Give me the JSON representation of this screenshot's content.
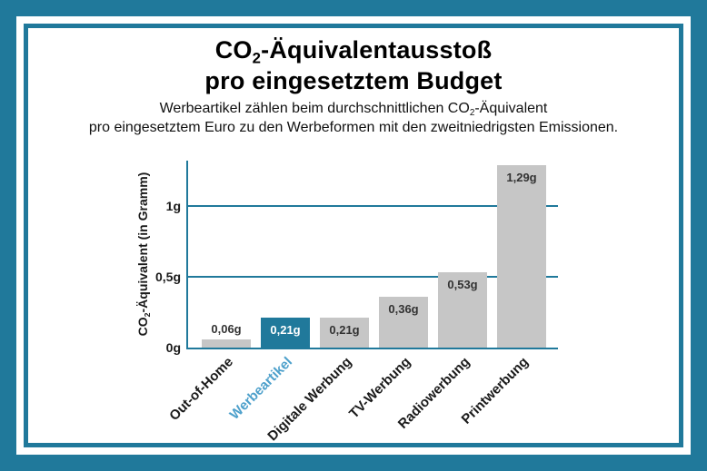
{
  "frame": {
    "color": "#20799B"
  },
  "header": {
    "title_line1": {
      "pre": "CO",
      "sub": "2",
      "post": "-Äquivalentausstoß"
    },
    "title_line2": "pro eingesetztem Budget",
    "subtitle_line1": {
      "pre": "Werbeartikel zählen beim durchschnittlichen CO",
      "sub": "2",
      "post": "-Äquivalent"
    },
    "subtitle_line2": "pro eingesetztem Euro zu den Werbeformen mit den zweitniedrigsten Emissionen."
  },
  "chart_data": {
    "type": "bar",
    "title": "CO2-Äquivalentausstoß pro eingesetztem Budget",
    "categories": [
      "Out-of-Home",
      "Werbeartikel",
      "Digitale Werbung",
      "TV-Werbung",
      "Radiowerbung",
      "Printwerbung"
    ],
    "values": [
      0.06,
      0.21,
      0.21,
      0.36,
      0.53,
      1.29
    ],
    "value_labels": [
      "0,06g",
      "0,21g",
      "0,21g",
      "0,36g",
      "0,53g",
      "1,29g"
    ],
    "highlight_index": 1,
    "ylabel": {
      "pre": "CO",
      "sub": "2",
      "post": "-Äquivalent (in Gramm)"
    },
    "yticks": [
      {
        "label": "0g",
        "value": 0
      },
      {
        "label": "0,5g",
        "value": 0.5
      },
      {
        "label": "1g",
        "value": 1
      }
    ],
    "ylim": [
      0,
      1.32
    ],
    "grid": true,
    "legend": "none",
    "colors": {
      "bar_default": "#C6C6C6",
      "bar_highlight": "#20799B",
      "axis": "#20799B",
      "grid": "#20799B",
      "label_default": "#333333",
      "label_on_highlight": "#FFFFFF",
      "xlabel_default": "#1A1A1A",
      "xlabel_highlight": "#4DA0CB"
    }
  }
}
